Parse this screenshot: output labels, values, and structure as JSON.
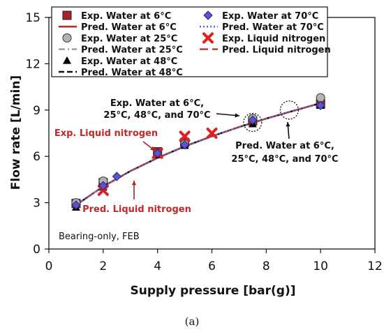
{
  "chart_data": {
    "type": "line",
    "xlabel": "Supply pressure [bar(g)]",
    "ylabel": "Flow rate [L/min]",
    "xlim": [
      0,
      12
    ],
    "ylim": [
      0,
      15
    ],
    "xticks": [
      "0",
      "2",
      "4",
      "6",
      "8",
      "10",
      "12"
    ],
    "yticks": [
      "0",
      "3",
      "6",
      "9",
      "12",
      "15"
    ],
    "grid": false,
    "legend_position": "top",
    "series": [
      {
        "name": "Exp. Water at 6°C",
        "kind": "marker",
        "marker": "square",
        "color": "#a8222a",
        "x": [
          1,
          2,
          4,
          5,
          7.5,
          10
        ],
        "y": [
          2.95,
          4.3,
          6.3,
          6.9,
          8.3,
          9.4
        ]
      },
      {
        "name": "Pred. Water at 6°C",
        "kind": "line",
        "dash": "solid",
        "color": "#c0282a",
        "x": [
          1,
          2,
          3,
          4,
          5,
          6,
          7,
          8,
          9,
          10
        ],
        "y": [
          2.85,
          4.05,
          5.05,
          5.9,
          6.65,
          7.3,
          7.9,
          8.45,
          8.95,
          9.45
        ]
      },
      {
        "name": "Exp. Water at 25°C",
        "kind": "marker",
        "marker": "circle",
        "color": "#b3b3b3",
        "x": [
          1,
          2,
          4,
          5,
          7.5,
          10
        ],
        "y": [
          3.0,
          4.4,
          6.2,
          6.8,
          8.45,
          9.8
        ]
      },
      {
        "name": "Pred. Water at 25°C",
        "kind": "line",
        "dash": "dashdot",
        "color": "#999999",
        "x": [
          1,
          2,
          3,
          4,
          5,
          6,
          7,
          8,
          9,
          10
        ],
        "y": [
          2.85,
          4.05,
          5.05,
          5.9,
          6.65,
          7.3,
          7.9,
          8.45,
          8.95,
          9.45
        ]
      },
      {
        "name": "Exp. Water at 48°C",
        "kind": "marker",
        "marker": "triangle",
        "color": "#000000",
        "x": [
          1,
          2,
          4,
          5,
          7.5,
          10
        ],
        "y": [
          2.7,
          4.0,
          6.1,
          6.7,
          8.1,
          9.3
        ]
      },
      {
        "name": "Pred. Water at 48°C",
        "kind": "line",
        "dash": "dashed",
        "color": "#111111",
        "x": [
          1,
          2,
          3,
          4,
          5,
          6,
          7,
          8,
          9,
          10
        ],
        "y": [
          2.85,
          4.05,
          5.05,
          5.9,
          6.65,
          7.3,
          7.9,
          8.45,
          8.95,
          9.45
        ]
      },
      {
        "name": "Exp. Water at 70°C",
        "kind": "marker",
        "marker": "diamond",
        "color": "#5b54c8",
        "x": [
          1,
          2,
          2.5,
          4,
          5,
          7.5,
          10
        ],
        "y": [
          2.85,
          4.1,
          4.7,
          6.2,
          6.75,
          8.35,
          9.3
        ]
      },
      {
        "name": "Pred. Water at 70°C",
        "kind": "line",
        "dash": "dotted",
        "color": "#5b6fd6",
        "x": [
          1,
          2,
          3,
          4,
          5,
          6,
          7,
          8,
          9,
          10
        ],
        "y": [
          2.85,
          4.05,
          5.05,
          5.9,
          6.65,
          7.3,
          7.9,
          8.45,
          8.95,
          9.45
        ]
      },
      {
        "name": "Exp. Liquid nitrogen",
        "kind": "marker",
        "marker": "x",
        "color": "#e02020",
        "x": [
          2,
          4,
          5,
          6
        ],
        "y": [
          3.8,
          6.2,
          7.3,
          7.5
        ]
      },
      {
        "name": "Pred. Liquid nitrogen",
        "kind": "line",
        "dash": "longdash",
        "color": "#b0382a",
        "x": [
          1,
          2,
          3,
          4,
          5,
          6,
          7,
          8,
          9,
          10
        ],
        "y": [
          2.85,
          4.05,
          5.05,
          5.9,
          6.65,
          7.3,
          7.9,
          8.45,
          8.95,
          9.45
        ]
      }
    ],
    "annotations": [
      {
        "lines": [
          "Exp. Water at 6°C,",
          "25°C, 48°C, and 70°C"
        ],
        "color": "#111111"
      },
      {
        "lines": [
          "Pred. Water at 6°C,",
          "25°C, 48°C, and 70°C"
        ],
        "color": "#111111"
      },
      {
        "lines": [
          "Exp. Liquid nitrogen"
        ],
        "color": "#c0282a"
      },
      {
        "lines": [
          "Pred. Liquid nitrogen"
        ],
        "color": "#c0282a"
      }
    ],
    "note": "Bearing-only, FEB",
    "caption": "(a)"
  }
}
